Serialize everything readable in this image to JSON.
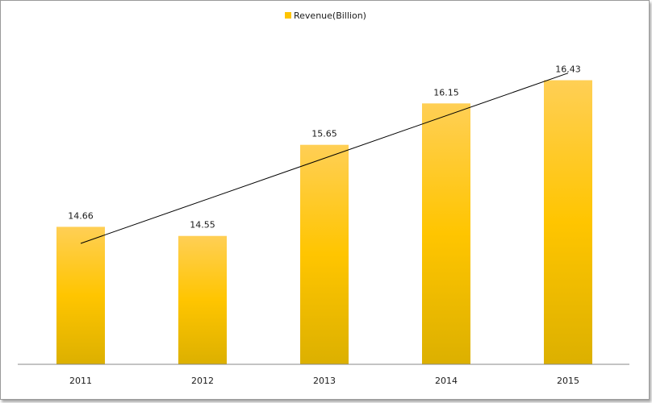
{
  "chart_data": {
    "type": "bar",
    "categories": [
      "2011",
      "2012",
      "2013",
      "2014",
      "2015"
    ],
    "series": [
      {
        "name": "Revenue(Billion)",
        "values": [
          14.66,
          14.55,
          15.65,
          16.15,
          16.43
        ]
      }
    ],
    "value_labels": [
      "14.66",
      "14.55",
      "15.65",
      "16.15",
      "16.43"
    ],
    "trendline": {
      "type": "linear",
      "style": "thin black line"
    },
    "ylim": [
      13.0,
      16.62
    ],
    "grid": false,
    "legend_position": "top-center",
    "colors": {
      "bar_top": "#ffcf55",
      "bar_mid": "#ffc500",
      "bar_bottom": "#dcb000",
      "trendline": "#000000",
      "axis": "#888888"
    }
  }
}
